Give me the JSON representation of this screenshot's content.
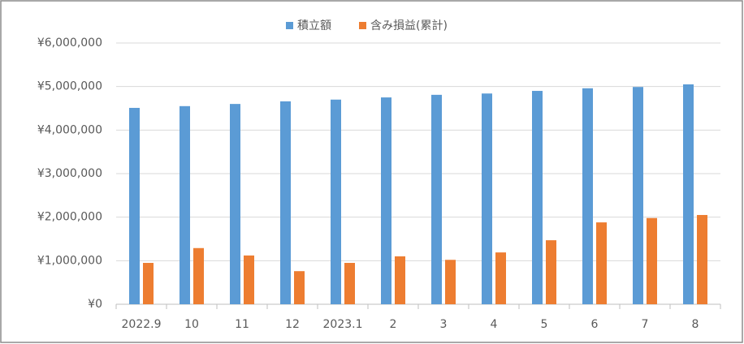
{
  "chart_data": {
    "type": "bar",
    "categories": [
      "2022.9",
      "10",
      "11",
      "12",
      "2023.1",
      "2",
      "3",
      "4",
      "5",
      "6",
      "7",
      "8"
    ],
    "series": [
      {
        "name": "積立額",
        "color": "#5b9bd5",
        "values": [
          4510000,
          4550000,
          4600000,
          4660000,
          4700000,
          4750000,
          4810000,
          4840000,
          4900000,
          4960000,
          4990000,
          5050000
        ]
      },
      {
        "name": "含み損益(累計)",
        "color": "#ed7d31",
        "values": [
          950000,
          1290000,
          1120000,
          760000,
          950000,
          1100000,
          1020000,
          1190000,
          1470000,
          1880000,
          1980000,
          2050000
        ]
      }
    ],
    "ylim": [
      0,
      6000000
    ],
    "yticks": [
      {
        "value": 0,
        "label": "¥0"
      },
      {
        "value": 1000000,
        "label": "¥1,000,000"
      },
      {
        "value": 2000000,
        "label": "¥2,000,000"
      },
      {
        "value": 3000000,
        "label": "¥3,000,000"
      },
      {
        "value": 4000000,
        "label": "¥4,000,000"
      },
      {
        "value": 5000000,
        "label": "¥5,000,000"
      },
      {
        "value": 6000000,
        "label": "¥6,000,000"
      }
    ],
    "grid": true,
    "legend": "top"
  }
}
